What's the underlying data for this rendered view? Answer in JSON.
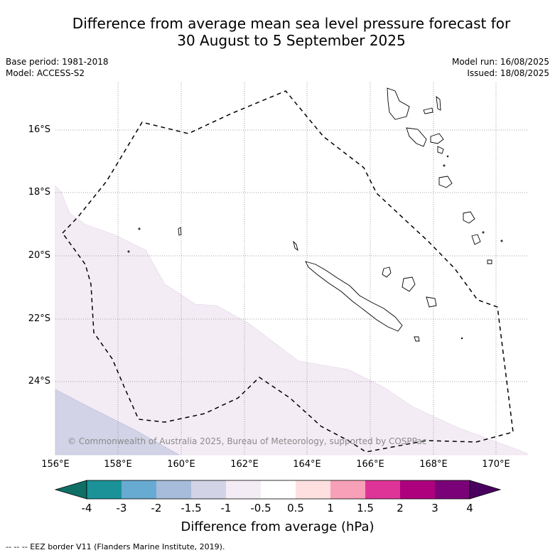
{
  "title": {
    "line1": "Difference from average mean sea level pressure forecast for",
    "line2": "30 August to 5 September 2025"
  },
  "meta": {
    "base_period": "Base period: 1981-2018",
    "model": "Model: ACCESS-S2",
    "model_run": "Model run: 16/08/2025",
    "issued": "Issued: 18/08/2025"
  },
  "map": {
    "lat_labels": [
      "16°S",
      "18°S",
      "20°S",
      "22°S",
      "24°S"
    ],
    "lon_labels": [
      "156°E",
      "158°E",
      "160°E",
      "162°E",
      "164°E",
      "166°E",
      "168°E",
      "170°E"
    ],
    "copyright": "© Commonwealth of Australia 2025, Bureau of Meteorology, supported by COSPPac",
    "anomaly_fill_colors": [
      "#f4ecf5",
      "#d2d3e7"
    ],
    "eez_line_style": "dashed"
  },
  "colorbar": {
    "ticks": [
      "-4",
      "-3",
      "-2",
      "-1.5",
      "-1",
      "-0.5",
      "0.5",
      "1",
      "1.5",
      "2",
      "3",
      "4"
    ],
    "colors": [
      "#0f6f66",
      "#1a9298",
      "#67aad2",
      "#a6bcda",
      "#d2d3e7",
      "#f4ecf5",
      "#ffffff",
      "#fee0e0",
      "#f9a0b9",
      "#df3497",
      "#ad017e",
      "#7a0177",
      "#4a0060"
    ],
    "label": "Difference from average (hPa)"
  },
  "footer": "-- -- -- EEZ border V11 (Flanders Marine Institute, 2019)."
}
